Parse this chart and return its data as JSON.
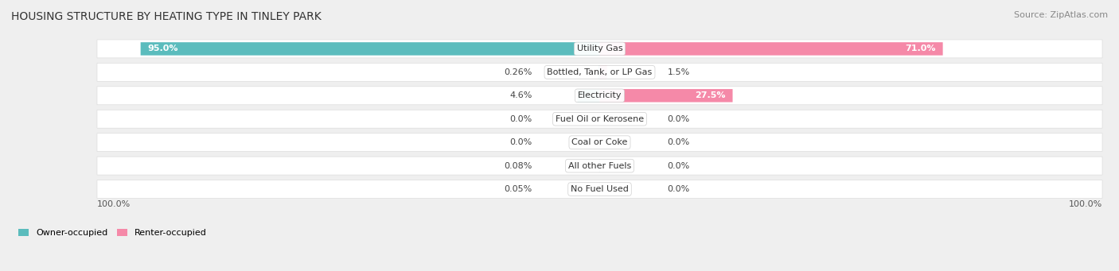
{
  "title": "HOUSING STRUCTURE BY HEATING TYPE IN TINLEY PARK",
  "source": "Source: ZipAtlas.com",
  "categories": [
    "Utility Gas",
    "Bottled, Tank, or LP Gas",
    "Electricity",
    "Fuel Oil or Kerosene",
    "Coal or Coke",
    "All other Fuels",
    "No Fuel Used"
  ],
  "owner_values": [
    95.0,
    0.26,
    4.6,
    0.0,
    0.0,
    0.08,
    0.05
  ],
  "renter_values": [
    71.0,
    1.5,
    27.5,
    0.0,
    0.0,
    0.0,
    0.0
  ],
  "owner_labels": [
    "95.0%",
    "0.26%",
    "4.6%",
    "0.0%",
    "0.0%",
    "0.08%",
    "0.05%"
  ],
  "renter_labels": [
    "71.0%",
    "1.5%",
    "27.5%",
    "0.0%",
    "0.0%",
    "0.0%",
    "0.0%"
  ],
  "owner_color": "#5bbcbd",
  "renter_color": "#f589a8",
  "bg_color": "#efefef",
  "row_bg_color": "#ffffff",
  "row_edge_color": "#dddddd",
  "max_value": 100.0,
  "title_fontsize": 10,
  "source_fontsize": 8,
  "bar_label_fontsize": 8,
  "category_fontsize": 8,
  "legend_fontsize": 8,
  "legend_label_owner": "Owner-occupied",
  "legend_label_renter": "Renter-occupied",
  "bottom_left_label": "100.0%",
  "bottom_right_label": "100.0%"
}
